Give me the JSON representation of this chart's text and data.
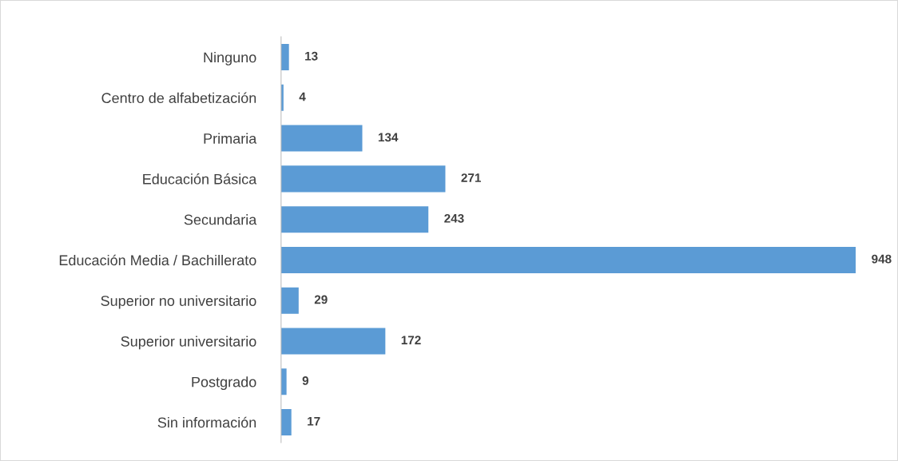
{
  "chart_data": {
    "type": "bar",
    "orientation": "horizontal",
    "categories": [
      "Ninguno",
      "Centro de alfabetización",
      "Primaria",
      "Educación Básica",
      "Secundaria",
      "Educación Media / Bachillerato",
      "Superior no universitario",
      "Superior universitario",
      "Postgrado",
      "Sin información"
    ],
    "values": [
      13,
      4,
      134,
      271,
      243,
      948,
      29,
      172,
      9,
      17
    ],
    "color": "#5b9bd5",
    "data_labels": true,
    "grid": false,
    "legend": false,
    "tick_labels": "y"
  }
}
